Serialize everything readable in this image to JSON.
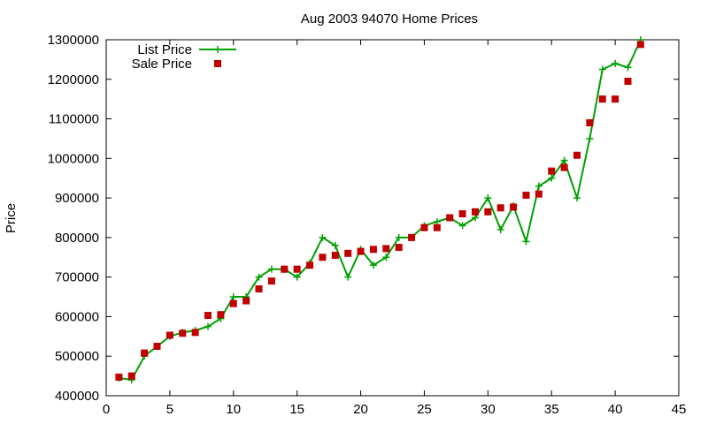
{
  "chart_data": {
    "type": "line",
    "title": "Aug 2003 94070 Home Prices",
    "xlabel": "",
    "ylabel": "Price",
    "xlim": [
      0,
      45
    ],
    "ylim": [
      400000,
      1300000
    ],
    "x_ticks": [
      0,
      5,
      10,
      15,
      20,
      25,
      30,
      35,
      40,
      45
    ],
    "y_ticks": [
      400000,
      500000,
      600000,
      700000,
      800000,
      900000,
      1000000,
      1100000,
      1200000,
      1300000
    ],
    "grid": false,
    "legend_position": "top-left",
    "series": [
      {
        "name": "List Price",
        "style": "line+plus",
        "color": "#00a000",
        "x": [
          1,
          2,
          3,
          4,
          5,
          6,
          7,
          8,
          9,
          10,
          11,
          12,
          13,
          14,
          15,
          16,
          17,
          18,
          19,
          20,
          21,
          22,
          23,
          24,
          25,
          26,
          27,
          28,
          29,
          30,
          31,
          32,
          33,
          34,
          35,
          36,
          37,
          38,
          39,
          40,
          41,
          42
        ],
        "values": [
          445000,
          440000,
          500000,
          525000,
          550000,
          560000,
          565000,
          575000,
          595000,
          650000,
          650000,
          700000,
          720000,
          720000,
          700000,
          735000,
          800000,
          780000,
          700000,
          770000,
          730000,
          750000,
          800000,
          800000,
          830000,
          840000,
          850000,
          830000,
          850000,
          900000,
          820000,
          880000,
          790000,
          930000,
          950000,
          995000,
          900000,
          1050000,
          1225000,
          1240000,
          1230000,
          1300000
        ]
      },
      {
        "name": "Sale Price",
        "style": "square-markers",
        "color": "#c00000",
        "x": [
          1,
          2,
          3,
          4,
          5,
          6,
          7,
          8,
          9,
          10,
          11,
          12,
          13,
          14,
          15,
          16,
          17,
          18,
          19,
          20,
          21,
          22,
          23,
          24,
          25,
          26,
          27,
          28,
          29,
          30,
          31,
          32,
          33,
          34,
          35,
          36,
          37,
          38,
          39,
          40,
          41,
          42
        ],
        "values": [
          447000,
          450000,
          508000,
          525000,
          553000,
          558000,
          560000,
          603000,
          605000,
          633000,
          640000,
          670000,
          690000,
          720000,
          720000,
          730000,
          750000,
          755000,
          760000,
          765000,
          770000,
          772000,
          775000,
          800000,
          825000,
          825000,
          850000,
          860000,
          865000,
          865000,
          875000,
          877000,
          907000,
          910000,
          968000,
          977000,
          1008000,
          1090000,
          1150000,
          1150000,
          1195000,
          1288000
        ]
      }
    ]
  }
}
